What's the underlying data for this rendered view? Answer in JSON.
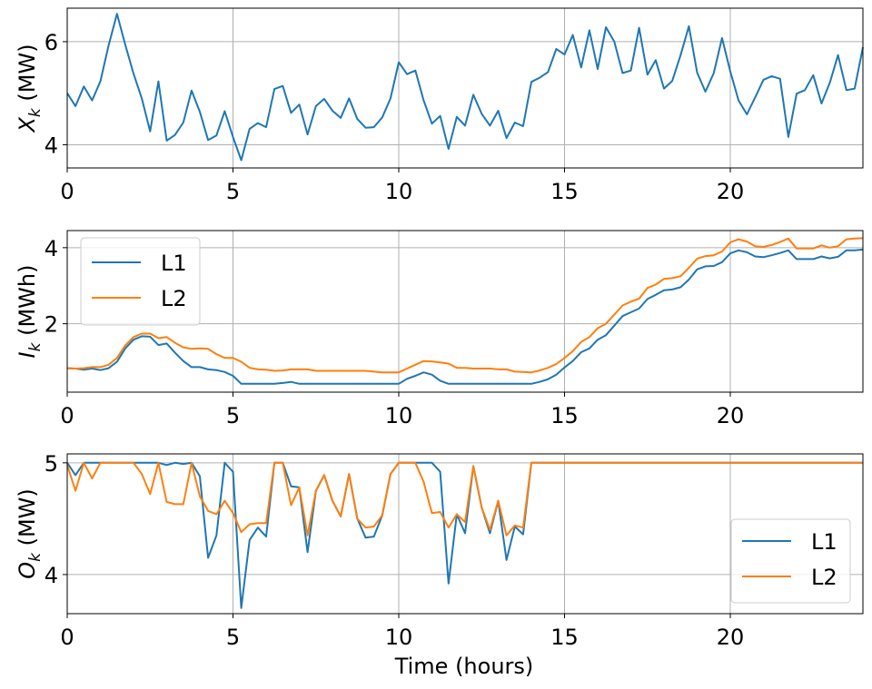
{
  "chart_data": [
    {
      "type": "line",
      "ylabel_main": "X",
      "ylabel_sub": "k",
      "ylabel_unit": " (MW)",
      "xlim": [
        0,
        24
      ],
      "ylim": [
        3.55,
        6.65
      ],
      "xticks": [
        0,
        5,
        10,
        15,
        20
      ],
      "yticks": [
        4,
        6
      ],
      "grid": true,
      "legend": null,
      "series": [
        {
          "color": "#1f77b4",
          "x": [
            0,
            0.25,
            0.5,
            0.75,
            1,
            1.25,
            1.5,
            1.75,
            2,
            2.25,
            2.5,
            2.75,
            3,
            3.25,
            3.5,
            3.75,
            4,
            4.25,
            4.5,
            4.75,
            5,
            5.25,
            5.5,
            5.75,
            6,
            6.25,
            6.5,
            6.75,
            7,
            7.25,
            7.5,
            7.75,
            8,
            8.25,
            8.5,
            8.75,
            9,
            9.25,
            9.5,
            9.75,
            10,
            10.25,
            10.5,
            10.75,
            11,
            11.25,
            11.5,
            11.75,
            12,
            12.25,
            12.5,
            12.75,
            13,
            13.25,
            13.5,
            13.75,
            14,
            14.25,
            14.5,
            14.75,
            15,
            15.25,
            15.5,
            15.75,
            16,
            16.25,
            16.5,
            16.75,
            17,
            17.25,
            17.5,
            17.75,
            18,
            18.25,
            18.5,
            18.75,
            19,
            19.25,
            19.5,
            19.75,
            20,
            20.25,
            20.5,
            20.75,
            21,
            21.25,
            21.5,
            21.75,
            22,
            22.25,
            22.5,
            22.75,
            23,
            23.25,
            23.5,
            23.75,
            24
          ],
          "values": [
            5.0,
            4.75,
            5.13,
            4.86,
            5.23,
            5.93,
            6.54,
            5.94,
            5.38,
            4.9,
            4.26,
            5.23,
            4.08,
            4.19,
            4.43,
            5.05,
            4.64,
            4.09,
            4.18,
            4.65,
            4.15,
            3.7,
            4.31,
            4.42,
            4.34,
            5.08,
            5.14,
            4.62,
            4.78,
            4.2,
            4.75,
            4.89,
            4.66,
            4.52,
            4.9,
            4.5,
            4.33,
            4.34,
            4.53,
            4.9,
            5.6,
            5.37,
            5.44,
            4.86,
            4.41,
            4.56,
            3.92,
            4.54,
            4.37,
            4.97,
            4.6,
            4.37,
            4.66,
            4.13,
            4.43,
            4.36,
            5.22,
            5.3,
            5.41,
            5.86,
            5.75,
            6.13,
            5.5,
            6.22,
            5.47,
            6.28,
            6.0,
            5.39,
            5.44,
            6.27,
            5.36,
            5.64,
            5.09,
            5.24,
            5.74,
            6.3,
            5.4,
            5.03,
            5.39,
            6.07,
            5.42,
            4.86,
            4.59,
            4.92,
            5.26,
            5.33,
            5.28,
            4.15,
            4.99,
            5.06,
            5.35,
            4.8,
            5.2,
            5.74,
            5.06,
            5.09,
            5.89
          ]
        }
      ]
    },
    {
      "type": "line",
      "ylabel_main": "I",
      "ylabel_sub": "k",
      "ylabel_unit": " (MWh)",
      "xlim": [
        0,
        24
      ],
      "ylim": [
        0.2,
        4.45
      ],
      "xticks": [
        0,
        5,
        10,
        15,
        20
      ],
      "yticks": [
        2,
        4
      ],
      "grid": true,
      "legend": "upper-left",
      "series": [
        {
          "name": "L1",
          "color": "#1f77b4",
          "x": [
            0,
            0.25,
            0.5,
            0.75,
            1,
            1.25,
            1.5,
            1.75,
            2,
            2.25,
            2.5,
            2.75,
            3,
            3.25,
            3.5,
            3.75,
            4,
            4.25,
            4.5,
            4.75,
            5,
            5.25,
            5.5,
            5.75,
            6,
            6.25,
            6.5,
            6.75,
            7,
            7.25,
            7.5,
            7.75,
            8,
            8.25,
            8.5,
            8.75,
            9,
            9.25,
            9.5,
            9.75,
            10,
            10.25,
            10.5,
            10.75,
            11,
            11.25,
            11.5,
            11.75,
            12,
            12.25,
            12.5,
            12.75,
            13,
            13.25,
            13.5,
            13.75,
            14,
            14.25,
            14.5,
            14.75,
            15,
            15.25,
            15.5,
            15.75,
            16,
            16.25,
            16.5,
            16.75,
            17,
            17.25,
            17.5,
            17.75,
            18,
            18.25,
            18.5,
            18.75,
            19,
            19.25,
            19.5,
            19.75,
            20,
            20.25,
            20.5,
            20.75,
            21,
            21.25,
            21.5,
            21.75,
            22,
            22.25,
            22.5,
            22.75,
            23,
            23.25,
            23.5,
            23.75,
            24
          ],
          "values": [
            0.83,
            0.82,
            0.79,
            0.82,
            0.78,
            0.83,
            1.0,
            1.35,
            1.58,
            1.67,
            1.66,
            1.44,
            1.48,
            1.24,
            1.02,
            0.86,
            0.86,
            0.8,
            0.78,
            0.73,
            0.63,
            0.42,
            0.42,
            0.42,
            0.42,
            0.42,
            0.44,
            0.47,
            0.42,
            0.42,
            0.42,
            0.42,
            0.42,
            0.42,
            0.42,
            0.42,
            0.42,
            0.42,
            0.42,
            0.42,
            0.42,
            0.55,
            0.63,
            0.72,
            0.66,
            0.5,
            0.42,
            0.42,
            0.42,
            0.42,
            0.42,
            0.42,
            0.42,
            0.42,
            0.42,
            0.42,
            0.42,
            0.47,
            0.54,
            0.66,
            0.85,
            1.02,
            1.25,
            1.35,
            1.58,
            1.7,
            1.95,
            2.2,
            2.3,
            2.4,
            2.65,
            2.76,
            2.88,
            2.9,
            2.96,
            3.16,
            3.43,
            3.51,
            3.52,
            3.62,
            3.85,
            3.93,
            3.88,
            3.77,
            3.75,
            3.8,
            3.86,
            3.93,
            3.7,
            3.7,
            3.7,
            3.77,
            3.72,
            3.76,
            3.93,
            3.93,
            3.95
          ]
        },
        {
          "name": "L2",
          "color": "#ff7f0e",
          "x": [
            0,
            0.25,
            0.5,
            0.75,
            1,
            1.25,
            1.5,
            1.75,
            2,
            2.25,
            2.5,
            2.75,
            3,
            3.25,
            3.5,
            3.75,
            4,
            4.25,
            4.5,
            4.75,
            5,
            5.25,
            5.5,
            5.75,
            6,
            6.25,
            6.5,
            6.75,
            7,
            7.25,
            7.5,
            7.75,
            8,
            8.25,
            8.5,
            8.75,
            9,
            9.25,
            9.5,
            9.75,
            10,
            10.25,
            10.5,
            10.75,
            11,
            11.25,
            11.5,
            11.75,
            12,
            12.25,
            12.5,
            12.75,
            13,
            13.25,
            13.5,
            13.75,
            14,
            14.25,
            14.5,
            14.75,
            15,
            15.25,
            15.5,
            15.75,
            16,
            16.25,
            16.5,
            16.75,
            17,
            17.25,
            17.5,
            17.75,
            18,
            18.25,
            18.5,
            18.75,
            19,
            19.25,
            19.5,
            19.75,
            20,
            20.25,
            20.5,
            20.75,
            21,
            21.25,
            21.5,
            21.75,
            22,
            22.25,
            22.5,
            22.75,
            23,
            23.25,
            23.5,
            23.75,
            24
          ],
          "values": [
            0.83,
            0.82,
            0.83,
            0.86,
            0.86,
            0.92,
            1.1,
            1.43,
            1.65,
            1.74,
            1.74,
            1.62,
            1.65,
            1.5,
            1.38,
            1.34,
            1.35,
            1.34,
            1.2,
            1.1,
            1.1,
            1.0,
            0.84,
            0.8,
            0.79,
            0.76,
            0.77,
            0.8,
            0.8,
            0.8,
            0.76,
            0.76,
            0.76,
            0.76,
            0.76,
            0.76,
            0.76,
            0.74,
            0.72,
            0.72,
            0.72,
            0.82,
            0.92,
            1.02,
            1.01,
            0.98,
            0.95,
            0.84,
            0.84,
            0.82,
            0.82,
            0.82,
            0.8,
            0.8,
            0.74,
            0.73,
            0.72,
            0.77,
            0.84,
            0.94,
            1.1,
            1.28,
            1.52,
            1.65,
            1.88,
            2.0,
            2.24,
            2.48,
            2.58,
            2.66,
            2.94,
            3.03,
            3.18,
            3.2,
            3.25,
            3.47,
            3.71,
            3.78,
            3.8,
            3.9,
            4.14,
            4.22,
            4.16,
            4.04,
            4.02,
            4.07,
            4.15,
            4.24,
            3.98,
            3.98,
            3.98,
            4.06,
            4.0,
            4.04,
            4.22,
            4.24,
            4.25
          ]
        }
      ]
    },
    {
      "type": "line",
      "ylabel_main": "O",
      "ylabel_sub": "k",
      "ylabel_unit": " (MW)",
      "xlabel": "Time (hours)",
      "xlim": [
        0,
        24
      ],
      "ylim": [
        3.65,
        5.08
      ],
      "xticks": [
        0,
        5,
        10,
        15,
        20
      ],
      "yticks": [
        4,
        5
      ],
      "grid": true,
      "legend": "lower-right",
      "series": [
        {
          "name": "L1",
          "color": "#1f77b4",
          "x": [
            0,
            0.25,
            0.5,
            0.75,
            1,
            1.25,
            1.5,
            1.75,
            2,
            2.25,
            2.5,
            2.75,
            3,
            3.25,
            3.5,
            3.75,
            4,
            4.25,
            4.5,
            4.75,
            5,
            5.25,
            5.5,
            5.75,
            6,
            6.25,
            6.5,
            6.75,
            7,
            7.25,
            7.5,
            7.75,
            8,
            8.25,
            8.5,
            8.75,
            9,
            9.25,
            9.5,
            9.75,
            10,
            10.25,
            10.5,
            10.75,
            11,
            11.25,
            11.5,
            11.75,
            12,
            12.25,
            12.5,
            12.75,
            13,
            13.25,
            13.5,
            13.75,
            14,
            14.25,
            14.5,
            14.75,
            15,
            15.25,
            15.5,
            15.75,
            16,
            16.25,
            16.5,
            16.75,
            17,
            17.25,
            17.5,
            17.75,
            18,
            18.25,
            18.5,
            18.75,
            19,
            19.25,
            19.5,
            19.75,
            20,
            20.25,
            20.5,
            20.75,
            21,
            21.25,
            21.5,
            21.75,
            22,
            22.25,
            22.5,
            22.75,
            23,
            23.25,
            23.5,
            23.75,
            24
          ],
          "values": [
            5.0,
            4.89,
            5.0,
            5.0,
            5.0,
            5.0,
            5.0,
            5.0,
            5.0,
            5.0,
            5.0,
            5.0,
            4.98,
            5.0,
            4.99,
            5.0,
            4.88,
            4.15,
            4.35,
            5.0,
            4.92,
            3.7,
            4.31,
            4.42,
            4.34,
            5.0,
            5.0,
            4.79,
            4.78,
            4.2,
            4.75,
            4.89,
            4.66,
            4.52,
            4.9,
            4.5,
            4.33,
            4.34,
            4.53,
            4.9,
            5.0,
            5.0,
            5.0,
            5.0,
            5.0,
            4.92,
            3.92,
            4.54,
            4.37,
            4.97,
            4.6,
            4.37,
            4.66,
            4.13,
            4.43,
            4.36,
            5.0,
            5.0,
            5.0,
            5.0,
            5.0,
            5.0,
            5.0,
            5.0,
            5.0,
            5.0,
            5.0,
            5.0,
            5.0,
            5.0,
            5.0,
            5.0,
            5.0,
            5.0,
            5.0,
            5.0,
            5.0,
            5.0,
            5.0,
            5.0,
            5.0,
            5.0,
            5.0,
            5.0,
            5.0,
            5.0,
            5.0,
            5.0,
            5.0,
            5.0,
            5.0,
            5.0,
            5.0,
            5.0,
            5.0,
            5.0,
            5.0
          ]
        },
        {
          "name": "L2",
          "color": "#ff7f0e",
          "x": [
            0,
            0.25,
            0.5,
            0.75,
            1,
            1.25,
            1.5,
            1.75,
            2,
            2.25,
            2.5,
            2.75,
            3,
            3.25,
            3.5,
            3.75,
            4,
            4.25,
            4.5,
            4.75,
            5,
            5.25,
            5.5,
            5.75,
            6,
            6.25,
            6.5,
            6.75,
            7,
            7.25,
            7.5,
            7.75,
            8,
            8.25,
            8.5,
            8.75,
            9,
            9.25,
            9.5,
            9.75,
            10,
            10.25,
            10.5,
            10.75,
            11,
            11.25,
            11.5,
            11.75,
            12,
            12.25,
            12.5,
            12.75,
            13,
            13.25,
            13.5,
            13.75,
            14,
            14.25,
            14.5,
            14.75,
            15,
            15.25,
            15.5,
            15.75,
            16,
            16.25,
            16.5,
            16.75,
            17,
            17.25,
            17.5,
            17.75,
            18,
            18.25,
            18.5,
            18.75,
            19,
            19.25,
            19.5,
            19.75,
            20,
            20.25,
            20.5,
            20.75,
            21,
            21.25,
            21.5,
            21.75,
            22,
            22.25,
            22.5,
            22.75,
            23,
            23.25,
            23.5,
            23.75,
            24
          ],
          "values": [
            4.98,
            4.75,
            5.0,
            4.86,
            5.0,
            5.0,
            5.0,
            5.0,
            5.0,
            4.9,
            4.72,
            5.0,
            4.65,
            4.63,
            4.63,
            5.0,
            4.7,
            4.57,
            4.54,
            4.66,
            4.55,
            4.38,
            4.45,
            4.46,
            4.46,
            5.0,
            5.0,
            4.62,
            4.78,
            4.35,
            4.75,
            4.89,
            4.66,
            4.52,
            4.9,
            4.5,
            4.42,
            4.43,
            4.53,
            4.9,
            5.0,
            5.0,
            5.0,
            4.83,
            4.55,
            4.56,
            4.42,
            4.54,
            4.47,
            4.97,
            4.6,
            4.4,
            4.66,
            4.35,
            4.44,
            4.42,
            5.0,
            5.0,
            5.0,
            5.0,
            5.0,
            5.0,
            5.0,
            5.0,
            5.0,
            5.0,
            5.0,
            5.0,
            5.0,
            5.0,
            5.0,
            5.0,
            5.0,
            5.0,
            5.0,
            5.0,
            5.0,
            5.0,
            5.0,
            5.0,
            5.0,
            5.0,
            5.0,
            5.0,
            5.0,
            5.0,
            5.0,
            5.0,
            5.0,
            5.0,
            5.0,
            5.0,
            5.0,
            5.0,
            5.0,
            5.0,
            5.0
          ]
        }
      ]
    }
  ]
}
